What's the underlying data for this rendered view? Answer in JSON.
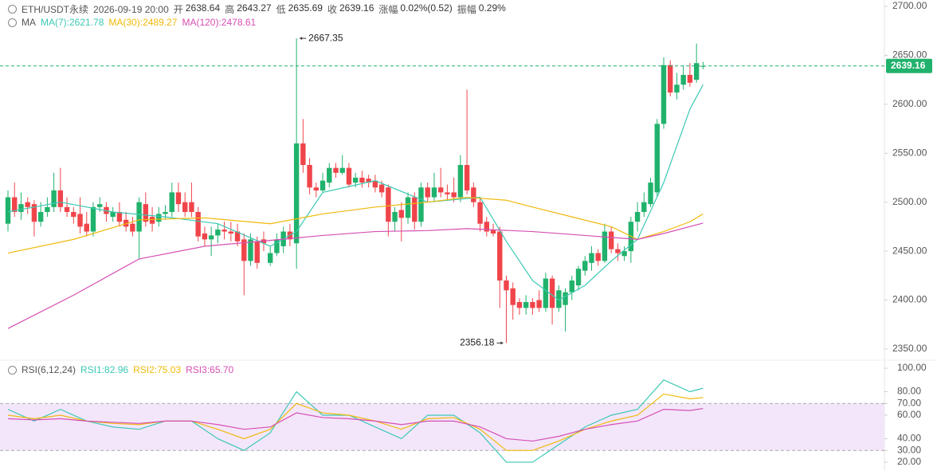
{
  "header": {
    "symbol": "ETH/USDT永续",
    "time": "2026-09-19 20:00",
    "fields": [
      {
        "label": "开",
        "value": "2638.64"
      },
      {
        "label": "高",
        "value": "2643.27"
      },
      {
        "label": "低",
        "value": "2635.69"
      },
      {
        "label": "收",
        "value": "2639.16"
      },
      {
        "label": "涨幅",
        "value": "0.02%(0.52)"
      },
      {
        "label": "振幅",
        "value": "0.29%"
      }
    ]
  },
  "chart_data": [
    {
      "type": "candlestick",
      "legend_title": "MA",
      "up_color": "#20b26c",
      "down_color": "#ef454a",
      "open": [
        2478,
        2505,
        2490,
        2500,
        2498,
        2480,
        2490,
        2495,
        2512,
        2495,
        2490,
        2488,
        2478,
        2470,
        2495,
        2495,
        2485,
        2490,
        2482,
        2478,
        2470,
        2498,
        2485,
        2480,
        2488,
        2490,
        2510,
        2500,
        2500,
        2490,
        2468,
        2462,
        2466,
        2472,
        2470,
        2470,
        2462,
        2440,
        2460,
        2462,
        2438,
        2448,
        2455,
        2470,
        2458,
        2560,
        2538,
        2515,
        2512,
        2520,
        2535,
        2530,
        2535,
        2520,
        2525,
        2524,
        2522,
        2518,
        2515,
        2480,
        2492,
        2484,
        2505,
        2480,
        2515,
        2505,
        2515,
        2510,
        2510,
        2505,
        2538,
        2515,
        2500,
        2480,
        2472,
        2470,
        2420,
        2412,
        2398,
        2392,
        2398,
        2400,
        2392,
        2422,
        2392,
        2395,
        2408,
        2415,
        2430,
        2438,
        2448,
        2440,
        2470,
        2452,
        2445,
        2450,
        2480,
        2490,
        2498,
        2510,
        2580,
        2640,
        2612,
        2620,
        2630,
        2625,
        2638.64
      ],
      "high": [
        2512,
        2520,
        2510,
        2505,
        2502,
        2500,
        2505,
        2530,
        2535,
        2505,
        2495,
        2505,
        2490,
        2500,
        2505,
        2500,
        2495,
        2500,
        2490,
        2485,
        2505,
        2510,
        2495,
        2495,
        2497,
        2520,
        2520,
        2510,
        2520,
        2495,
        2475,
        2475,
        2478,
        2480,
        2480,
        2478,
        2468,
        2468,
        2465,
        2470,
        2455,
        2468,
        2475,
        2478,
        2667.35,
        2585,
        2545,
        2520,
        2530,
        2540,
        2540,
        2548,
        2540,
        2530,
        2532,
        2528,
        2528,
        2522,
        2518,
        2495,
        2500,
        2510,
        2510,
        2520,
        2520,
        2530,
        2535,
        2518,
        2525,
        2548,
        2615,
        2520,
        2505,
        2485,
        2478,
        2475,
        2425,
        2418,
        2402,
        2405,
        2402,
        2410,
        2428,
        2425,
        2415,
        2412,
        2425,
        2435,
        2445,
        2455,
        2452,
        2478,
        2475,
        2458,
        2455,
        2485,
        2500,
        2510,
        2525,
        2585,
        2648,
        2645,
        2632,
        2640,
        2642,
        2662,
        2643.27
      ],
      "low": [
        2470,
        2485,
        2482,
        2488,
        2465,
        2475,
        2485,
        2490,
        2490,
        2485,
        2478,
        2468,
        2465,
        2465,
        2490,
        2480,
        2480,
        2475,
        2470,
        2465,
        2442,
        2475,
        2470,
        2475,
        2482,
        2485,
        2490,
        2485,
        2485,
        2460,
        2455,
        2445,
        2458,
        2462,
        2460,
        2455,
        2405,
        2435,
        2432,
        2450,
        2435,
        2445,
        2448,
        2455,
        2432,
        2530,
        2508,
        2505,
        2510,
        2515,
        2525,
        2528,
        2515,
        2515,
        2515,
        2515,
        2510,
        2505,
        2465,
        2470,
        2460,
        2478,
        2472,
        2475,
        2500,
        2500,
        2505,
        2502,
        2500,
        2500,
        2508,
        2495,
        2470,
        2465,
        2465,
        2392,
        2356.18,
        2380,
        2385,
        2385,
        2385,
        2388,
        2388,
        2375,
        2388,
        2368,
        2400,
        2410,
        2425,
        2430,
        2435,
        2438,
        2448,
        2440,
        2440,
        2438,
        2470,
        2485,
        2495,
        2505,
        2575,
        2608,
        2605,
        2615,
        2618,
        2622,
        2635.69
      ],
      "close": [
        2505,
        2490,
        2498,
        2495,
        2480,
        2490,
        2495,
        2512,
        2495,
        2490,
        2485,
        2475,
        2470,
        2495,
        2498,
        2488,
        2490,
        2480,
        2475,
        2470,
        2500,
        2480,
        2478,
        2488,
        2490,
        2510,
        2498,
        2490,
        2490,
        2465,
        2462,
        2466,
        2472,
        2470,
        2468,
        2460,
        2440,
        2462,
        2438,
        2458,
        2448,
        2462,
        2470,
        2462,
        2560,
        2538,
        2515,
        2512,
        2522,
        2535,
        2530,
        2535,
        2518,
        2525,
        2520,
        2520,
        2515,
        2510,
        2480,
        2490,
        2484,
        2505,
        2480,
        2515,
        2505,
        2515,
        2510,
        2508,
        2505,
        2538,
        2512,
        2500,
        2478,
        2470,
        2468,
        2420,
        2410,
        2395,
        2392,
        2398,
        2392,
        2392,
        2422,
        2392,
        2410,
        2408,
        2420,
        2432,
        2440,
        2448,
        2440,
        2470,
        2452,
        2448,
        2450,
        2480,
        2490,
        2500,
        2520,
        2580,
        2640,
        2612,
        2620,
        2630,
        2622,
        2642,
        2639.16
      ],
      "ylim": [
        2340.2,
        2706.5
      ],
      "yticks": [
        {
          "value": 2700,
          "label": "2700.00"
        },
        {
          "value": 2650,
          "label": "2650.00"
        },
        {
          "value": 2600,
          "label": "2600.00"
        },
        {
          "value": 2550,
          "label": "2550.00"
        },
        {
          "value": 2500,
          "label": "2500.00"
        },
        {
          "value": 2450,
          "label": "2450.00"
        },
        {
          "value": 2400,
          "label": "2400.00"
        },
        {
          "value": 2350,
          "label": "2350.00"
        }
      ],
      "last_price": 2639.16,
      "annotations": [
        {
          "index": 44,
          "value": 2667.35
        },
        {
          "index": 76,
          "value": 2356.18
        }
      ],
      "series": [
        {
          "name": "MA(7):2621.78",
          "color": "#3cc8b4",
          "x": [
            0,
            8,
            16,
            24,
            32,
            40,
            44,
            48,
            56,
            64,
            72,
            76,
            80,
            84,
            88,
            92,
            96,
            100,
            104,
            106
          ],
          "values": [
            2490,
            2500,
            2490,
            2485,
            2478,
            2455,
            2470,
            2510,
            2522,
            2500,
            2505,
            2460,
            2420,
            2400,
            2415,
            2440,
            2462,
            2520,
            2595,
            2620
          ]
        },
        {
          "name": "MA(30):2489.27",
          "color": "#f0b90b",
          "x": [
            0,
            10,
            20,
            30,
            40,
            48,
            56,
            64,
            70,
            76,
            80,
            86,
            92,
            96,
            100,
            104,
            106
          ],
          "values": [
            2448,
            2462,
            2482,
            2484,
            2478,
            2488,
            2495,
            2500,
            2505,
            2502,
            2495,
            2485,
            2475,
            2462,
            2470,
            2480,
            2488
          ]
        },
        {
          "name": "MA(120):2478.61",
          "color": "#d64fb4",
          "x": [
            0,
            10,
            20,
            30,
            40,
            48,
            56,
            64,
            70,
            80,
            88,
            96,
            100,
            106
          ],
          "values": [
            2371,
            2405,
            2442,
            2455,
            2461,
            2466,
            2470,
            2471,
            2473,
            2470,
            2466,
            2462,
            2468,
            2478.61
          ]
        }
      ]
    },
    {
      "type": "line",
      "title": "RSI(6,12,24)",
      "band": [
        30,
        70
      ],
      "ylim": [
        12.5,
        106.8
      ],
      "yticks": [
        {
          "value": 100,
          "label": "100.00"
        },
        {
          "value": 80,
          "label": "80.00"
        },
        {
          "value": 70,
          "label": "70.00"
        },
        {
          "value": 60,
          "label": "60.00"
        },
        {
          "value": 40,
          "label": "40.00"
        },
        {
          "value": 30,
          "label": "30.00"
        },
        {
          "value": 20,
          "label": "20.00"
        }
      ],
      "series": [
        {
          "name": "RSI1:82.96",
          "color": "#3cc8b4",
          "x": [
            0,
            4,
            8,
            12,
            16,
            20,
            24,
            28,
            32,
            36,
            40,
            44,
            48,
            52,
            56,
            60,
            64,
            68,
            72,
            76,
            80,
            84,
            88,
            92,
            96,
            100,
            104,
            106
          ],
          "values": [
            65,
            55,
            65,
            55,
            50,
            48,
            55,
            55,
            40,
            30,
            45,
            80,
            60,
            60,
            50,
            40,
            60,
            60,
            45,
            20,
            20,
            35,
            50,
            60,
            65,
            90,
            80,
            82.96
          ]
        },
        {
          "name": "RSI2:75.03",
          "color": "#f0b90b",
          "x": [
            0,
            4,
            8,
            12,
            16,
            20,
            24,
            28,
            32,
            36,
            40,
            44,
            48,
            52,
            56,
            60,
            64,
            68,
            72,
            76,
            80,
            84,
            88,
            92,
            96,
            100,
            104,
            106
          ],
          "values": [
            60,
            57,
            60,
            55,
            53,
            52,
            55,
            55,
            48,
            40,
            48,
            70,
            62,
            60,
            55,
            48,
            57,
            58,
            48,
            30,
            30,
            38,
            48,
            55,
            60,
            78,
            74,
            75.03
          ]
        },
        {
          "name": "RSI3:65.70",
          "color": "#d64fb4",
          "x": [
            0,
            4,
            8,
            12,
            16,
            20,
            24,
            28,
            32,
            36,
            40,
            44,
            48,
            52,
            56,
            60,
            64,
            68,
            72,
            76,
            80,
            84,
            88,
            92,
            96,
            100,
            104,
            106
          ],
          "values": [
            57,
            56,
            57,
            55,
            54,
            53,
            55,
            55,
            52,
            48,
            50,
            62,
            58,
            57,
            55,
            52,
            55,
            55,
            50,
            40,
            38,
            42,
            48,
            52,
            55,
            65,
            64,
            65.7
          ]
        }
      ]
    }
  ]
}
